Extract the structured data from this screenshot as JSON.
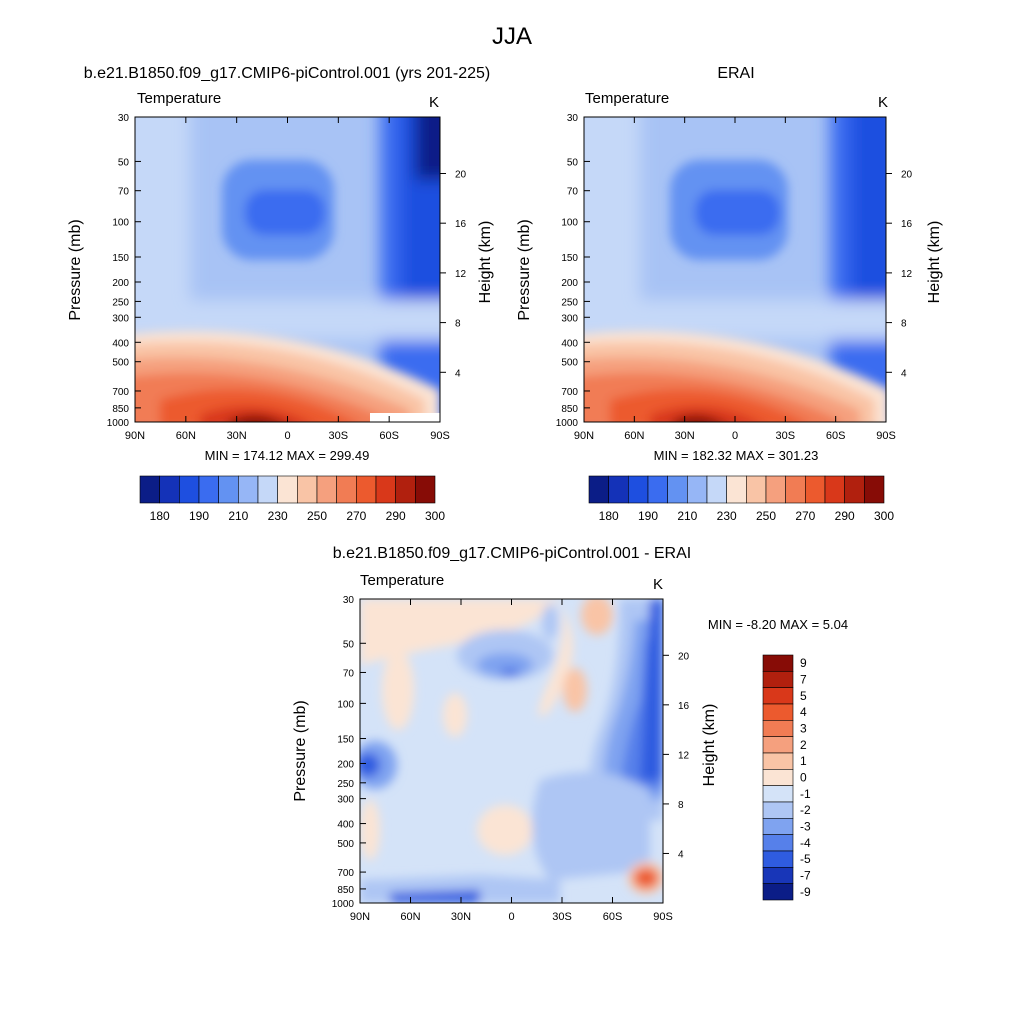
{
  "figure": {
    "title": "JJA"
  },
  "chart_data": [
    {
      "type": "heatmap",
      "id": "model",
      "title": "b.e21.B1850.f09_g17.CMIP6-piControl.001 (yrs 201-225)",
      "variable_label": "Temperature",
      "units_label": "K",
      "ylabel": "Pressure (mb)",
      "ylabel_right": "Height (km)",
      "x_ticks": [
        "90N",
        "60N",
        "30N",
        "0",
        "30S",
        "60S",
        "90S"
      ],
      "y_ticks": [
        "30",
        "50",
        "70",
        "100",
        "150",
        "200",
        "250",
        "300",
        "400",
        "500",
        "700",
        "850",
        "1000"
      ],
      "y_ticks_right": [
        "4",
        "8",
        "12",
        "16",
        "20"
      ],
      "stats": "MIN = 174.12  MAX = 299.49",
      "min": 174.12,
      "max": 299.49,
      "colorbar_labels": [
        "180",
        "190",
        "210",
        "230",
        "250",
        "270",
        "290",
        "300"
      ]
    },
    {
      "type": "heatmap",
      "id": "obs",
      "title": "ERAI",
      "variable_label": "Temperature",
      "units_label": "K",
      "ylabel": "Pressure (mb)",
      "ylabel_right": "Height (km)",
      "x_ticks": [
        "90N",
        "60N",
        "30N",
        "0",
        "30S",
        "60S",
        "90S"
      ],
      "y_ticks": [
        "30",
        "50",
        "70",
        "100",
        "150",
        "200",
        "250",
        "300",
        "400",
        "500",
        "700",
        "850",
        "1000"
      ],
      "y_ticks_right": [
        "4",
        "8",
        "12",
        "16",
        "20"
      ],
      "stats": "MIN = 182.32  MAX = 301.23",
      "min": 182.32,
      "max": 301.23,
      "colorbar_labels": [
        "180",
        "190",
        "210",
        "230",
        "250",
        "270",
        "290",
        "300"
      ]
    },
    {
      "type": "heatmap",
      "id": "diff",
      "title": "b.e21.B1850.f09_g17.CMIP6-piControl.001 - ERAI",
      "variable_label": "Temperature",
      "units_label": "K",
      "ylabel": "Pressure (mb)",
      "ylabel_right": "Height (km)",
      "x_ticks": [
        "90N",
        "60N",
        "30N",
        "0",
        "30S",
        "60S",
        "90S"
      ],
      "y_ticks": [
        "30",
        "50",
        "70",
        "100",
        "150",
        "200",
        "250",
        "300",
        "400",
        "500",
        "700",
        "850",
        "1000"
      ],
      "y_ticks_right": [
        "4",
        "8",
        "12",
        "16",
        "20"
      ],
      "stats": "MIN =  -8.20  MAX =   5.04",
      "min": -8.2,
      "max": 5.04,
      "colorbar_labels": [
        "9",
        "7",
        "5",
        "4",
        "3",
        "2",
        "1",
        "0",
        "-1",
        "-2",
        "-3",
        "-4",
        "-5",
        "-7",
        "-9"
      ]
    }
  ],
  "palettes": {
    "absolute": [
      "#0b1d87",
      "#1432b8",
      "#1e4fe0",
      "#3a6cf0",
      "#6392f2",
      "#96b6f6",
      "#c5d8f8",
      "#fbe4d4",
      "#f9c4a6",
      "#f5a07e",
      "#f17c54",
      "#ec5a2e",
      "#d9381a",
      "#b1200e",
      "#870c06"
    ],
    "difference": [
      "#870c06",
      "#b1200e",
      "#d9381a",
      "#ec5a2e",
      "#f17c54",
      "#f5a07e",
      "#f9c4a6",
      "#fbe4d4",
      "#d4e3f8",
      "#aec6f4",
      "#7fa3f0",
      "#5680ea",
      "#2f5ce0",
      "#1836b8",
      "#0b1d87"
    ]
  }
}
